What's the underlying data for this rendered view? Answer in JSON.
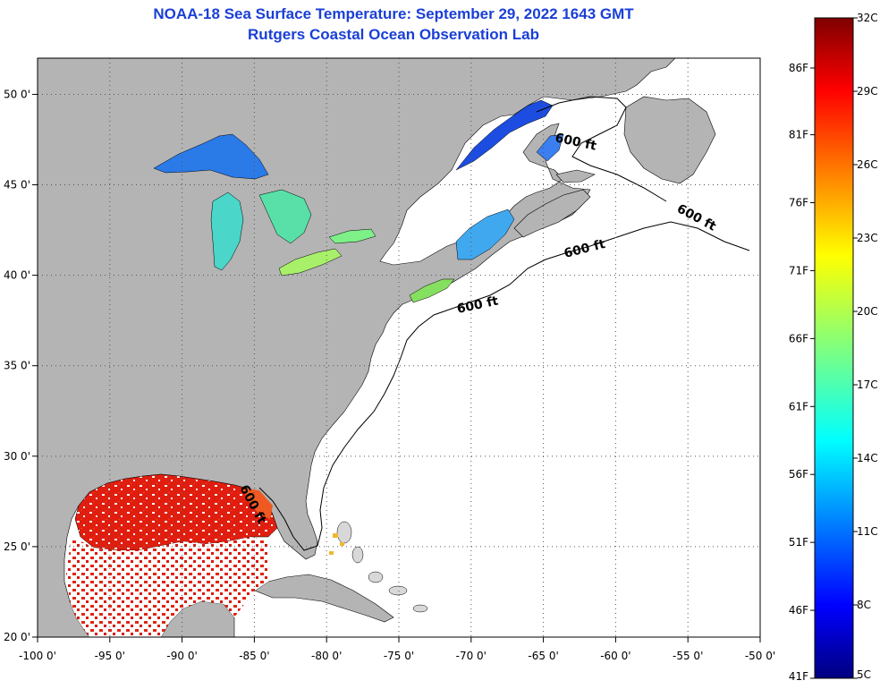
{
  "title": {
    "line1": "NOAA-18 Sea Surface Temperature:  September 29, 2022 1643 GMT",
    "line2": "Rutgers Coastal Ocean Observation Lab"
  },
  "map": {
    "lon_range": [
      -100,
      -50
    ],
    "lat_range": [
      20,
      52
    ],
    "lon_ticks": [
      {
        "value": -100,
        "label": "-100 0'"
      },
      {
        "value": -95,
        "label": "-95 0'"
      },
      {
        "value": -90,
        "label": "-90 0'"
      },
      {
        "value": -85,
        "label": "-85 0'"
      },
      {
        "value": -80,
        "label": "-80 0'"
      },
      {
        "value": -75,
        "label": "-75 0'"
      },
      {
        "value": -70,
        "label": "-70 0'"
      },
      {
        "value": -65,
        "label": "-65 0'"
      },
      {
        "value": -60,
        "label": "-60 0'"
      },
      {
        "value": -55,
        "label": "-55 0'"
      },
      {
        "value": -50,
        "label": "-50 0'"
      }
    ],
    "lat_ticks": [
      {
        "value": 50,
        "label": "50 0'"
      },
      {
        "value": 45,
        "label": "45 0'"
      },
      {
        "value": 40,
        "label": "40 0'"
      },
      {
        "value": 35,
        "label": "35 0'"
      },
      {
        "value": 30,
        "label": "30 0'"
      },
      {
        "value": 25,
        "label": "25 0'"
      },
      {
        "value": 20,
        "label": "20 0'"
      }
    ],
    "contour_label": "600 ft",
    "land_color": "#b4b4b4",
    "ocean_color": "#ffffff",
    "grid": "dotted"
  },
  "colorbar": {
    "min_c": 5,
    "max_c": 32,
    "celsius_labels": [
      "32C",
      "29C",
      "26C",
      "23C",
      "20C",
      "17C",
      "14C",
      "11C",
      "8C",
      "5C"
    ],
    "fahrenheit_labels": [
      "86F",
      "81F",
      "76F",
      "71F",
      "66F",
      "61F",
      "56F",
      "51F",
      "46F",
      "41F"
    ]
  }
}
